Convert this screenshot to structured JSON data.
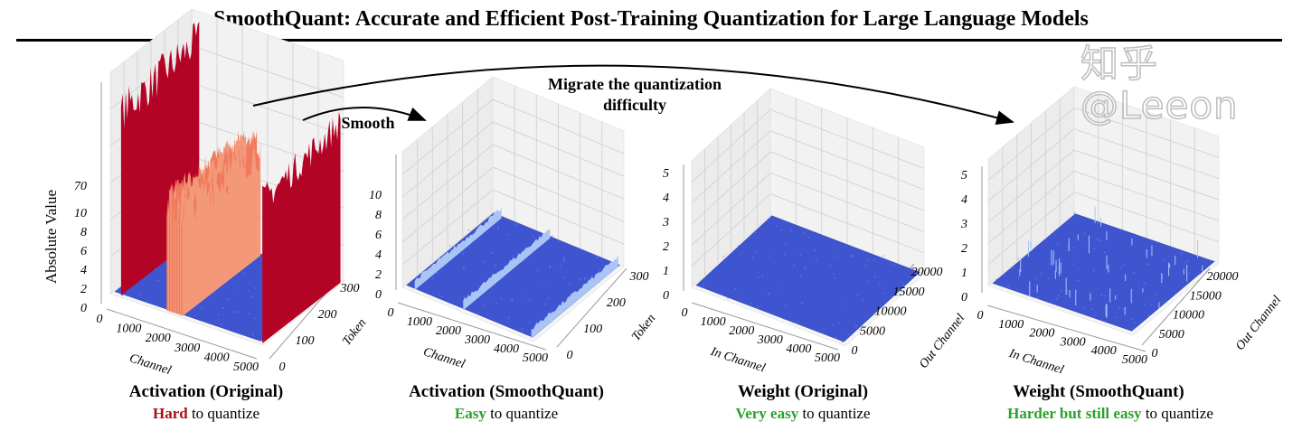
{
  "title": "SmoothQuant: Accurate and Efficient Post-Training Quantization for Large Language Models",
  "arrows": {
    "migrate_label_line1": "Migrate the quantization",
    "migrate_label_line2": "difficulty",
    "smooth_label": "Smooth"
  },
  "colors": {
    "high": "#b40426",
    "mid": "#f4987a",
    "low": "#3f55d0",
    "spike": "#a9c4f5",
    "hard": "#a50f15",
    "easy": "#2ca02c"
  },
  "panels": [
    {
      "caption": "Activation (Original)",
      "difficulty": "Hard",
      "difficulty_class": "hard",
      "suffix": " to quantize",
      "z_label": "Absolute Value",
      "z_ticks": [
        "0",
        "2",
        "4",
        "6",
        "8",
        "10",
        "70"
      ],
      "x_label": "Channel",
      "x_ticks": [
        "0",
        "1000",
        "2000",
        "3000",
        "4000",
        "5000"
      ],
      "y_label": "Token",
      "y_ticks": [
        "0",
        "100",
        "200",
        "300"
      ]
    },
    {
      "caption": "Activation (SmoothQuant)",
      "difficulty": "Easy",
      "difficulty_class": "easy",
      "suffix": " to quantize",
      "z_label": "",
      "z_ticks": [
        "0",
        "2",
        "4",
        "6",
        "8",
        "10"
      ],
      "x_label": "Channel",
      "x_ticks": [
        "0",
        "1000",
        "2000",
        "3000",
        "4000",
        "5000"
      ],
      "y_label": "Token",
      "y_ticks": [
        "0",
        "100",
        "200",
        "300"
      ]
    },
    {
      "caption": "Weight (Original)",
      "difficulty": "Very easy",
      "difficulty_class": "easy",
      "suffix": " to quantize",
      "z_label": "",
      "z_ticks": [
        "0",
        "1",
        "2",
        "3",
        "4",
        "5"
      ],
      "x_label": "In Channel",
      "x_ticks": [
        "0",
        "1000",
        "2000",
        "3000",
        "4000",
        "5000"
      ],
      "y_label": "Out Channel",
      "y_ticks": [
        "0",
        "5000",
        "10000",
        "15000",
        "20000"
      ]
    },
    {
      "caption": "Weight (SmoothQuant)",
      "difficulty": "Harder but still easy",
      "difficulty_class": "easy",
      "suffix": " to quantize",
      "z_label": "",
      "z_ticks": [
        "0",
        "1",
        "2",
        "3",
        "4",
        "5"
      ],
      "x_label": "In Channel",
      "x_ticks": [
        "0",
        "1000",
        "2000",
        "3000",
        "4000",
        "5000"
      ],
      "y_label": "Out Channel",
      "y_ticks": [
        "0",
        "5000",
        "10000",
        "15000",
        "20000"
      ]
    }
  ],
  "watermark": "知乎 @Leeon"
}
